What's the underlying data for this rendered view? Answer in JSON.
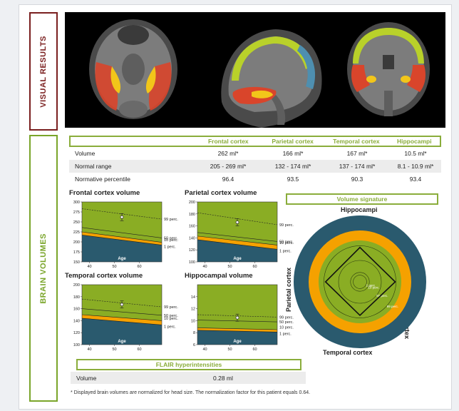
{
  "sections": {
    "visual": "VISUAL RESULTS",
    "brain": "BRAIN VOLUMES"
  },
  "table": {
    "columns": [
      "Frontal cortex",
      "Parietal cortex",
      "Temporal cortex",
      "Hippocampi"
    ],
    "rows": [
      {
        "label": "Volume",
        "values": [
          "262 ml*",
          "166 ml*",
          "167 ml*",
          "10.5 ml*"
        ]
      },
      {
        "label": "Normal range",
        "values": [
          "205 - 269 ml*",
          "132 - 174 ml*",
          "137 - 174 ml*",
          "8.1 - 10.9 ml*"
        ]
      },
      {
        "label": "Normative percentile",
        "values": [
          "96.4",
          "93.5",
          "90.3",
          "93.4"
        ]
      }
    ]
  },
  "chart_data": [
    {
      "type": "line",
      "title": "Frontal cortex volume",
      "xlabel": "Age",
      "xlim": [
        37,
        69
      ],
      "ylim": [
        150,
        300
      ],
      "yticks": [
        150,
        175,
        200,
        225,
        250,
        275,
        300
      ],
      "xticks": [
        40,
        50,
        60
      ],
      "percentile_labels": [
        "99 perc.",
        "50 perc.",
        "10 perc.",
        "1 perc."
      ],
      "percentile_lines": [
        [
          283,
          257
        ],
        [
          236,
          210
        ],
        [
          225,
          199
        ],
        [
          217,
          192
        ]
      ],
      "patient": {
        "x": 53,
        "y": 262
      }
    },
    {
      "type": "line",
      "title": "Parietal cortex volume",
      "xlabel": "Age",
      "xlim": [
        37,
        69
      ],
      "ylim": [
        100,
        200
      ],
      "yticks": [
        100,
        120,
        140,
        160,
        180,
        200
      ],
      "xticks": [
        40,
        50,
        60
      ],
      "percentile_labels": [
        "99 perc.",
        "50 perc.",
        "10 perc.",
        "1 perc."
      ],
      "percentile_lines": [
        [
          182,
          162
        ],
        [
          149,
          134
        ],
        [
          143,
          128
        ],
        [
          137,
          121
        ]
      ],
      "patient": {
        "x": 53,
        "y": 166
      }
    },
    {
      "type": "line",
      "title": "Temporal cortex volume",
      "xlabel": "Age",
      "xlim": [
        37,
        69
      ],
      "ylim": [
        100,
        200
      ],
      "yticks": [
        100,
        120,
        140,
        160,
        180,
        200
      ],
      "xticks": [
        40,
        50,
        60
      ],
      "percentile_labels": [
        "99 perc.",
        "50 perc.",
        "10 perc.",
        "1 perc."
      ],
      "percentile_lines": [
        [
          176,
          163
        ],
        [
          160,
          149
        ],
        [
          150,
          140
        ],
        [
          144,
          133
        ]
      ],
      "patient": {
        "x": 53,
        "y": 167
      }
    },
    {
      "type": "line",
      "title": "Hippocampal volume",
      "xlabel": "Age",
      "xlim": [
        37,
        69
      ],
      "ylim": [
        6,
        16
      ],
      "yticks": [
        6,
        8,
        10,
        12,
        14
      ],
      "xticks": [
        40,
        50,
        60
      ],
      "percentile_labels": [
        "99 perc.",
        "50 perc.",
        "10 perc.",
        "1 perc."
      ],
      "percentile_lines": [
        [
          11.0,
          10.6
        ],
        [
          10.1,
          9.8
        ],
        [
          8.8,
          8.5
        ],
        [
          8.4,
          8.1
        ]
      ],
      "patient": {
        "x": 53,
        "y": 10.5
      }
    }
  ],
  "signature": {
    "title": "Volume signature",
    "axes": [
      "Hippocampi",
      "Frontal cortex",
      "Temporal cortex",
      "Parietal cortex"
    ],
    "percentiles": [
      93.4,
      96.4,
      90.3,
      93.5
    ],
    "ring_labels": [
      "99 perc.",
      "50 perc.",
      "10 perc.",
      "1 perc."
    ]
  },
  "flair": {
    "title": "FLAIR hyperintensities",
    "label": "Volume",
    "value": "0.28 ml"
  },
  "footnote": "* Displayed brain volumes are normalized for head size. The normalization factor for this patient equals 0.64.",
  "colors": {
    "green_band": "#8aad24",
    "orange_band": "#f5a100",
    "teal_band": "#2a5a6e",
    "frame_green": "#8aad3b",
    "frame_red": "#7a1f1f"
  }
}
